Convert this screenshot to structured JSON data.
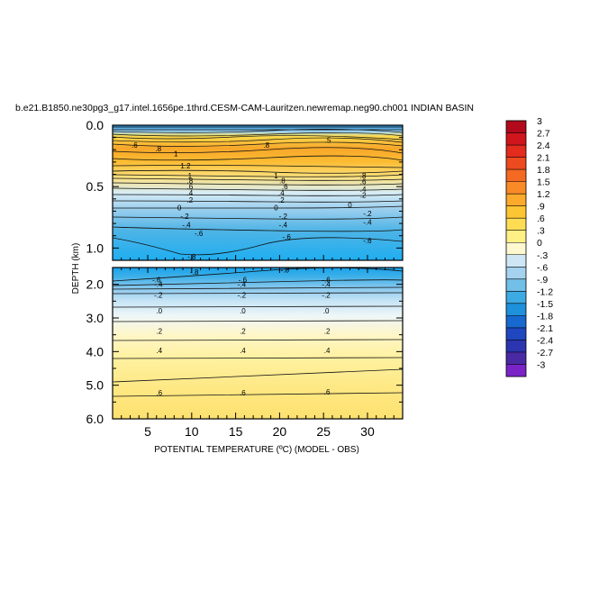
{
  "chart_data": {
    "type": "heatmap",
    "title": "b.e21.B1850.ne30pg3_g17.intel.1656pe.1thrd.CESM-CAM-Lauritzen.newremap.neg90.ch001 INDIAN BASIN",
    "xlabel": "POTENTIAL TEMPERATURE (ºC) (MODEL - OBS)",
    "ylabel": "DEPTH (km)",
    "xlim": [
      1,
      34
    ],
    "x_ticks": [
      "5",
      "10",
      "15",
      "20",
      "25",
      "30"
    ],
    "panels": [
      {
        "name": "upper",
        "ylim": [
          0,
          1.1
        ],
        "y_ticks": [
          "0.0",
          "0.5",
          "1.0"
        ]
      },
      {
        "name": "lower",
        "ylim": [
          1.5,
          6.0
        ],
        "y_ticks": [
          "2.0",
          "3.0",
          "4.0",
          "5.0",
          "6.0"
        ]
      }
    ],
    "colorbar": {
      "labels": [
        "3",
        "2.7",
        "2.4",
        "2.1",
        "1.8",
        "1.5",
        "1.2",
        ".9",
        ".6",
        ".3",
        "0",
        "-.3",
        "-.6",
        "-.9",
        "-1.2",
        "-1.5",
        "-1.8",
        "-2.1",
        "-2.4",
        "-2.7",
        "-3"
      ],
      "colors": [
        "#b20a1c",
        "#d0151d",
        "#e32b1e",
        "#ee4a1f",
        "#f46a22",
        "#f88a27",
        "#fbaa2d",
        "#fcc534",
        "#fedd55",
        "#fff085",
        "#fef8d0",
        "#cfe7f4",
        "#a5d2ee",
        "#72bfe8",
        "#3eaae3",
        "#1e90dc",
        "#1768cf",
        "#1f47bf",
        "#2b35b0",
        "#4a2aa4",
        "#7a24c8"
      ]
    },
    "contour_labels": {
      "upper": [
        {
          "x": 3.5,
          "depth": 0.16,
          "text": ".6"
        },
        {
          "x": 6.2,
          "depth": 0.19,
          "text": ".8"
        },
        {
          "x": 8.2,
          "depth": 0.23,
          "text": "1"
        },
        {
          "x": 9.3,
          "depth": 0.33,
          "text": "1.2"
        },
        {
          "x": 9.8,
          "depth": 0.41,
          "text": "1"
        },
        {
          "x": 9.8,
          "depth": 0.45,
          "text": ".8"
        },
        {
          "x": 9.8,
          "depth": 0.5,
          "text": ".6"
        },
        {
          "x": 9.8,
          "depth": 0.55,
          "text": ".4"
        },
        {
          "x": 9.8,
          "depth": 0.61,
          "text": ".2"
        },
        {
          "x": 8.6,
          "depth": 0.67,
          "text": "0"
        },
        {
          "x": 9.2,
          "depth": 0.74,
          "text": "-.2"
        },
        {
          "x": 9.4,
          "depth": 0.81,
          "text": "-.4"
        },
        {
          "x": 10.8,
          "depth": 0.88,
          "text": "-.6"
        },
        {
          "x": 10.0,
          "depth": 1.07,
          "text": "-.8"
        },
        {
          "x": 18.5,
          "depth": 0.16,
          "text": ".8"
        },
        {
          "x": 19.6,
          "depth": 0.41,
          "text": "1"
        },
        {
          "x": 20.3,
          "depth": 0.45,
          "text": ".8"
        },
        {
          "x": 20.6,
          "depth": 0.5,
          "text": ".6"
        },
        {
          "x": 20.2,
          "depth": 0.55,
          "text": ".4"
        },
        {
          "x": 20.2,
          "depth": 0.61,
          "text": ".2"
        },
        {
          "x": 19.6,
          "depth": 0.67,
          "text": "0"
        },
        {
          "x": 20.4,
          "depth": 0.74,
          "text": "-.2"
        },
        {
          "x": 20.4,
          "depth": 0.81,
          "text": "-.4"
        },
        {
          "x": 20.8,
          "depth": 0.91,
          "text": "-.6"
        },
        {
          "x": 25.5,
          "depth": 0.12,
          "text": ".5"
        },
        {
          "x": 29.5,
          "depth": 0.41,
          "text": ".8"
        },
        {
          "x": 29.5,
          "depth": 0.46,
          "text": ".6"
        },
        {
          "x": 29.5,
          "depth": 0.52,
          "text": ".4"
        },
        {
          "x": 29.5,
          "depth": 0.57,
          "text": ".2"
        },
        {
          "x": 28.0,
          "depth": 0.65,
          "text": "0"
        },
        {
          "x": 30.0,
          "depth": 0.72,
          "text": "-.2"
        },
        {
          "x": 30.0,
          "depth": 0.79,
          "text": "-.4"
        },
        {
          "x": 30.0,
          "depth": 0.94,
          "text": "-.6"
        }
      ],
      "lower": [
        {
          "x": 10.3,
          "depth": 1.63,
          "text": "-.8"
        },
        {
          "x": 20.6,
          "depth": 1.57,
          "text": "-.8"
        },
        {
          "x": 6.0,
          "depth": 1.86,
          "text": "-.6"
        },
        {
          "x": 6.2,
          "depth": 2.0,
          "text": "-.4"
        },
        {
          "x": 6.2,
          "depth": 2.32,
          "text": "-.2"
        },
        {
          "x": 6.3,
          "depth": 2.79,
          "text": ".0"
        },
        {
          "x": 6.3,
          "depth": 3.39,
          "text": ".2"
        },
        {
          "x": 6.3,
          "depth": 3.96,
          "text": ".4"
        },
        {
          "x": 6.3,
          "depth": 5.22,
          "text": ".6"
        },
        {
          "x": 15.8,
          "depth": 1.86,
          "text": "-.6"
        },
        {
          "x": 15.7,
          "depth": 2.0,
          "text": "-.4"
        },
        {
          "x": 15.7,
          "depth": 2.32,
          "text": "-.2"
        },
        {
          "x": 15.8,
          "depth": 2.79,
          "text": ".0"
        },
        {
          "x": 15.8,
          "depth": 3.39,
          "text": ".2"
        },
        {
          "x": 15.8,
          "depth": 3.96,
          "text": ".4"
        },
        {
          "x": 15.8,
          "depth": 5.22,
          "text": ".6"
        },
        {
          "x": 25.3,
          "depth": 1.86,
          "text": "-.6"
        },
        {
          "x": 25.3,
          "depth": 2.0,
          "text": "-.4"
        },
        {
          "x": 25.3,
          "depth": 2.32,
          "text": "-.2"
        },
        {
          "x": 25.3,
          "depth": 2.79,
          "text": ".0"
        },
        {
          "x": 25.4,
          "depth": 3.39,
          "text": ".2"
        },
        {
          "x": 25.4,
          "depth": 3.96,
          "text": ".4"
        },
        {
          "x": 25.4,
          "depth": 5.2,
          "text": ".6"
        }
      ]
    }
  }
}
